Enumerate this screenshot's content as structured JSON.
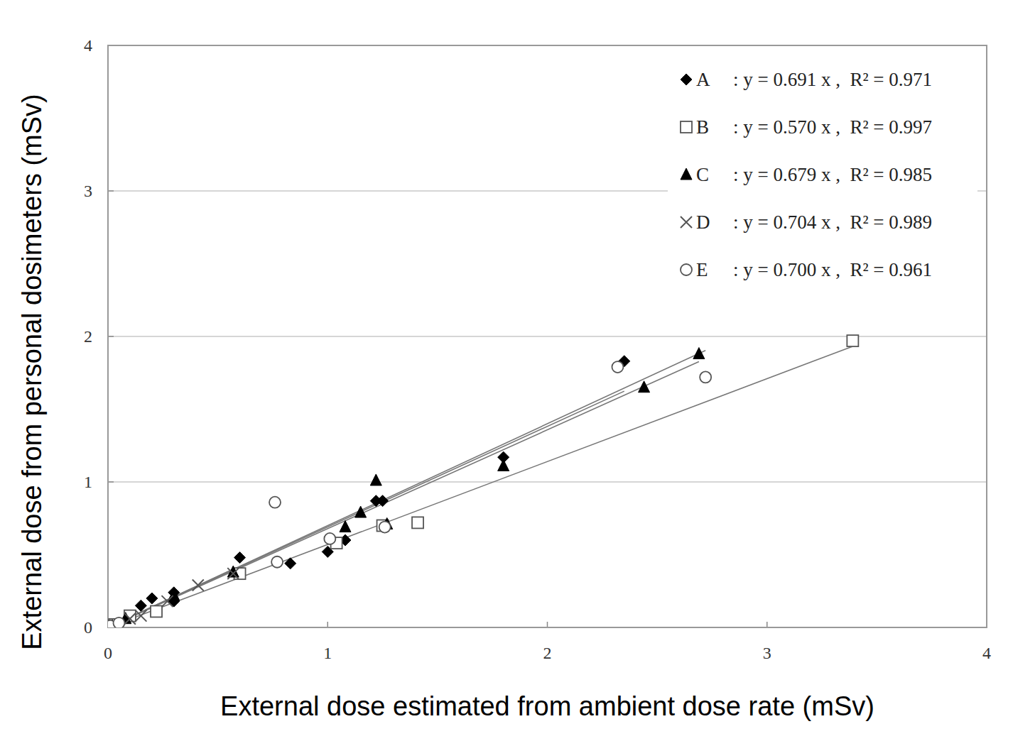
{
  "chart_data": {
    "type": "scatter",
    "x_label": "External dose estimated from ambient dose rate (mSv)",
    "y_label": "External dose from personal dosimeters (mSv)",
    "xlim": [
      0,
      4
    ],
    "ylim": [
      0,
      4
    ],
    "xticks": [
      0,
      1,
      2,
      3,
      4
    ],
    "yticks": [
      0,
      1,
      2,
      3,
      4
    ],
    "grid": "y",
    "legend": "upper right",
    "series": [
      {
        "name": "A",
        "color": "#000000",
        "marker": "diamond",
        "slope": 0.691,
        "fit_label": ": y = 0.691 x ,  R² = 0.971",
        "x": [
          0.02,
          0.05,
          0.1,
          0.15,
          0.2,
          0.3,
          0.3,
          0.6,
          0.83,
          1.0,
          1.08,
          1.22,
          1.25,
          1.8,
          2.35
        ],
        "values": [
          0.01,
          0.03,
          0.08,
          0.15,
          0.2,
          0.18,
          0.24,
          0.48,
          0.44,
          0.52,
          0.6,
          0.87,
          0.87,
          1.17,
          1.83
        ]
      },
      {
        "name": "B",
        "color": "#555555",
        "marker": "square-open",
        "slope": 0.57,
        "fit_label": ": y = 0.570 x ,  R² = 0.997",
        "x": [
          0.01,
          0.03,
          0.1,
          0.22,
          0.6,
          1.04,
          1.25,
          1.41,
          3.39
        ],
        "values": [
          0.01,
          0.02,
          0.08,
          0.11,
          0.37,
          0.58,
          0.7,
          0.72,
          1.97
        ]
      },
      {
        "name": "C",
        "color": "#000000",
        "marker": "triangle",
        "slope": 0.679,
        "fit_label": ": y = 0.679 x ,  R² = 0.985",
        "x": [
          0.02,
          0.08,
          0.3,
          0.57,
          1.08,
          1.15,
          1.22,
          1.27,
          1.8,
          2.44,
          2.69
        ],
        "values": [
          0.01,
          0.06,
          0.22,
          0.38,
          0.69,
          0.79,
          1.01,
          0.71,
          1.11,
          1.65,
          1.88
        ]
      },
      {
        "name": "D",
        "color": "#555555",
        "marker": "x",
        "slope": 0.704,
        "fit_label": ": y = 0.704 x ,  R² = 0.989",
        "x": [
          0.02,
          0.1,
          0.15,
          0.27,
          0.41,
          0.57
        ],
        "values": [
          0.02,
          0.06,
          0.08,
          0.18,
          0.29,
          0.37
        ]
      },
      {
        "name": "E",
        "color": "#555555",
        "marker": "circle-open",
        "slope": 0.7,
        "fit_label": ": y = 0.700 x ,  R² = 0.961",
        "x": [
          0.01,
          0.05,
          0.76,
          0.77,
          1.01,
          1.26,
          2.32,
          2.72
        ],
        "values": [
          0.01,
          0.03,
          0.86,
          0.45,
          0.61,
          0.69,
          1.79,
          1.72
        ]
      }
    ]
  }
}
